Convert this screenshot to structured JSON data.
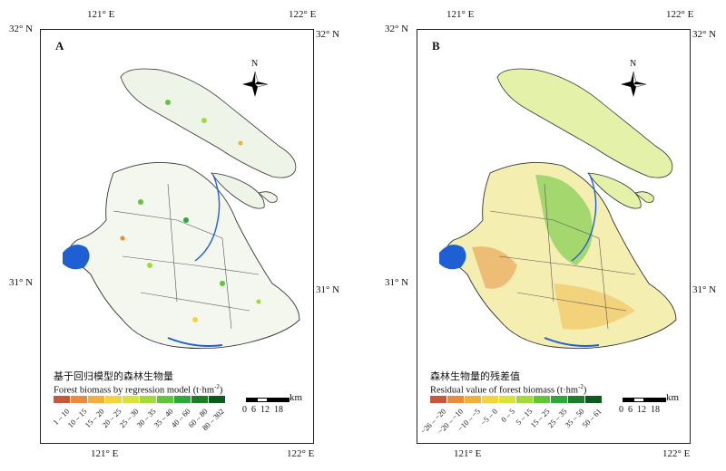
{
  "top_ticks": [
    "121° E",
    "122° E"
  ],
  "bottom_ticks": [
    "121° E",
    "122° E"
  ],
  "lat_ticks": {
    "top": "32° N",
    "mid": "31° N"
  },
  "compass_letter": "N",
  "scale": {
    "unit": "km",
    "labels": [
      "0",
      "6",
      "12",
      "18"
    ]
  },
  "panelA": {
    "letter": "A",
    "title_zh": "基于回归模型的森林生物量",
    "title_en": "Forest biomass by regression model (t·hm",
    "title_sup": "-2",
    "title_close": ")",
    "legend": [
      {
        "label": "1 – 10",
        "color": "#c8563a"
      },
      {
        "label": "10 – 15",
        "color": "#e88b3a"
      },
      {
        "label": "15 – 20",
        "color": "#f0b03a"
      },
      {
        "label": "20 – 25",
        "color": "#f3d43a"
      },
      {
        "label": "25 – 30",
        "color": "#d7e43a"
      },
      {
        "label": "30 – 35",
        "color": "#a4d93a"
      },
      {
        "label": "35 – 40",
        "color": "#62c43a"
      },
      {
        "label": "40 – 60",
        "color": "#2ea83a"
      },
      {
        "label": "60 – 80",
        "color": "#1b7f2a"
      },
      {
        "label": "80 – 302",
        "color": "#0c5a1d"
      }
    ]
  },
  "panelB": {
    "letter": "B",
    "title_zh": "森林生物量的残差值",
    "title_en": "Residual value of forest biomass (t·hm",
    "title_sup": "-2",
    "title_close": ")",
    "legend": [
      {
        "label": "−26 – −20",
        "color": "#c8563a"
      },
      {
        "label": "−20 – −10",
        "color": "#e88b3a"
      },
      {
        "label": "−10 – −5",
        "color": "#f0b03a"
      },
      {
        "label": "−5 – 0",
        "color": "#f3d43a"
      },
      {
        "label": "0 – 5",
        "color": "#d7e43a"
      },
      {
        "label": "5 – 15",
        "color": "#a4d93a"
      },
      {
        "label": "15 – 25",
        "color": "#62c43a"
      },
      {
        "label": "25 – 35",
        "color": "#2ea83a"
      },
      {
        "label": "35 – 50",
        "color": "#1b7f2a"
      },
      {
        "label": "50 – 61",
        "color": "#0c5a1d"
      }
    ]
  },
  "colors": {
    "water": "#1f5fd4",
    "boundary": "#333333"
  }
}
